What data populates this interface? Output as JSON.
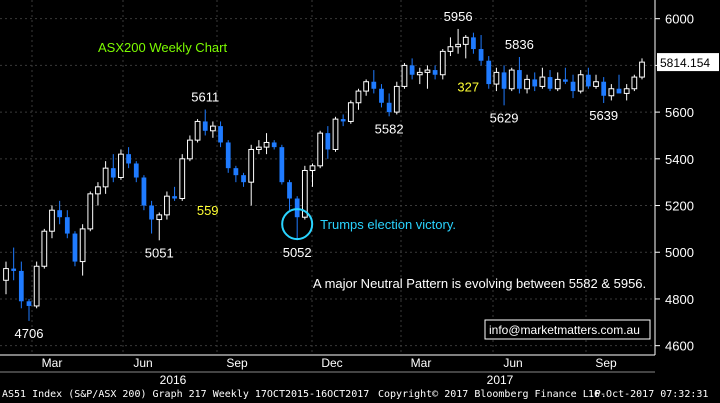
{
  "chart_data": {
    "type": "candlestick",
    "title": "ASX200 Weekly Chart",
    "ylim": [
      4560,
      6080
    ],
    "y_ticks": [
      4600,
      4800,
      5000,
      5200,
      5400,
      5600,
      5800,
      6000
    ],
    "x_month_labels": [
      "Mar",
      "Jun",
      "Sep",
      "Dec",
      "Mar",
      "Jun",
      "Sep"
    ],
    "x_year_labels": [
      "2016",
      "2017"
    ],
    "last_value": "5814.154",
    "colors": {
      "up": "#ffffff",
      "down": "#1f7bff",
      "title": "#7cfc00",
      "annotation_yellow": "#ffff33",
      "circle": "#2ad4ff"
    },
    "candles": [
      {
        "open": 4880,
        "high": 4960,
        "low": 4820,
        "close": 4930
      },
      {
        "open": 4930,
        "high": 5020,
        "low": 4880,
        "close": 4920
      },
      {
        "open": 4920,
        "high": 4960,
        "low": 4760,
        "close": 4790
      },
      {
        "open": 4790,
        "high": 4800,
        "low": 4706,
        "close": 4770
      },
      {
        "open": 4770,
        "high": 4960,
        "low": 4760,
        "close": 4940
      },
      {
        "open": 4940,
        "high": 5100,
        "low": 4930,
        "close": 5090
      },
      {
        "open": 5090,
        "high": 5200,
        "low": 5060,
        "close": 5180
      },
      {
        "open": 5180,
        "high": 5220,
        "low": 5120,
        "close": 5150
      },
      {
        "open": 5150,
        "high": 5180,
        "low": 5060,
        "close": 5080
      },
      {
        "open": 5080,
        "high": 5090,
        "low": 4940,
        "close": 4960
      },
      {
        "open": 4960,
        "high": 5120,
        "low": 4900,
        "close": 5100
      },
      {
        "open": 5100,
        "high": 5260,
        "low": 5090,
        "close": 5250
      },
      {
        "open": 5250,
        "high": 5300,
        "low": 5200,
        "close": 5280
      },
      {
        "open": 5280,
        "high": 5390,
        "low": 5250,
        "close": 5360
      },
      {
        "open": 5360,
        "high": 5420,
        "low": 5300,
        "close": 5320
      },
      {
        "open": 5320,
        "high": 5440,
        "low": 5310,
        "close": 5420
      },
      {
        "open": 5420,
        "high": 5450,
        "low": 5360,
        "close": 5380
      },
      {
        "open": 5380,
        "high": 5390,
        "low": 5300,
        "close": 5320
      },
      {
        "open": 5320,
        "high": 5330,
        "low": 5180,
        "close": 5200
      },
      {
        "open": 5200,
        "high": 5220,
        "low": 5080,
        "close": 5140
      },
      {
        "open": 5140,
        "high": 5170,
        "low": 5051,
        "close": 5160
      },
      {
        "open": 5160,
        "high": 5260,
        "low": 5140,
        "close": 5240
      },
      {
        "open": 5240,
        "high": 5280,
        "low": 5220,
        "close": 5230
      },
      {
        "open": 5230,
        "high": 5420,
        "low": 5220,
        "close": 5400
      },
      {
        "open": 5400,
        "high": 5500,
        "low": 5390,
        "close": 5480
      },
      {
        "open": 5480,
        "high": 5570,
        "low": 5470,
        "close": 5560
      },
      {
        "open": 5560,
        "high": 5611,
        "low": 5500,
        "close": 5520
      },
      {
        "open": 5520,
        "high": 5560,
        "low": 5490,
        "close": 5540
      },
      {
        "open": 5540,
        "high": 5560,
        "low": 5450,
        "close": 5470
      },
      {
        "open": 5470,
        "high": 5480,
        "low": 5340,
        "close": 5360
      },
      {
        "open": 5360,
        "high": 5370,
        "low": 5300,
        "close": 5330
      },
      {
        "open": 5330,
        "high": 5340,
        "low": 5280,
        "close": 5300
      },
      {
        "open": 5300,
        "high": 5460,
        "low": 5200,
        "close": 5440
      },
      {
        "open": 5440,
        "high": 5480,
        "low": 5420,
        "close": 5450
      },
      {
        "open": 5450,
        "high": 5510,
        "low": 5420,
        "close": 5470
      },
      {
        "open": 5470,
        "high": 5480,
        "low": 5440,
        "close": 5450
      },
      {
        "open": 5450,
        "high": 5460,
        "low": 5290,
        "close": 5300
      },
      {
        "open": 5300,
        "high": 5310,
        "low": 5180,
        "close": 5230
      },
      {
        "open": 5230,
        "high": 5240,
        "low": 5052,
        "close": 5150
      },
      {
        "open": 5150,
        "high": 5370,
        "low": 5140,
        "close": 5350
      },
      {
        "open": 5350,
        "high": 5380,
        "low": 5280,
        "close": 5370
      },
      {
        "open": 5370,
        "high": 5520,
        "low": 5360,
        "close": 5510
      },
      {
        "open": 5510,
        "high": 5540,
        "low": 5400,
        "close": 5440
      },
      {
        "open": 5440,
        "high": 5580,
        "low": 5430,
        "close": 5570
      },
      {
        "open": 5570,
        "high": 5590,
        "low": 5540,
        "close": 5560
      },
      {
        "open": 5560,
        "high": 5650,
        "low": 5550,
        "close": 5640
      },
      {
        "open": 5640,
        "high": 5700,
        "low": 5610,
        "close": 5690
      },
      {
        "open": 5690,
        "high": 5740,
        "low": 5670,
        "close": 5730
      },
      {
        "open": 5730,
        "high": 5780,
        "low": 5680,
        "close": 5700
      },
      {
        "open": 5700,
        "high": 5720,
        "low": 5620,
        "close": 5640
      },
      {
        "open": 5640,
        "high": 5680,
        "low": 5582,
        "close": 5600
      },
      {
        "open": 5600,
        "high": 5730,
        "low": 5590,
        "close": 5710
      },
      {
        "open": 5710,
        "high": 5810,
        "low": 5700,
        "close": 5800
      },
      {
        "open": 5800,
        "high": 5830,
        "low": 5740,
        "close": 5760
      },
      {
        "open": 5760,
        "high": 5790,
        "low": 5720,
        "close": 5770
      },
      {
        "open": 5770,
        "high": 5800,
        "low": 5700,
        "close": 5780
      },
      {
        "open": 5780,
        "high": 5800,
        "low": 5740,
        "close": 5760
      },
      {
        "open": 5760,
        "high": 5870,
        "low": 5740,
        "close": 5860
      },
      {
        "open": 5860,
        "high": 5920,
        "low": 5840,
        "close": 5880
      },
      {
        "open": 5880,
        "high": 5956,
        "low": 5850,
        "close": 5890
      },
      {
        "open": 5890,
        "high": 5930,
        "low": 5830,
        "close": 5920
      },
      {
        "open": 5920,
        "high": 5940,
        "low": 5850,
        "close": 5870
      },
      {
        "open": 5870,
        "high": 5930,
        "low": 5800,
        "close": 5820
      },
      {
        "open": 5820,
        "high": 5840,
        "low": 5700,
        "close": 5720
      },
      {
        "open": 5720,
        "high": 5790,
        "low": 5690,
        "close": 5770
      },
      {
        "open": 5770,
        "high": 5800,
        "low": 5629,
        "close": 5700
      },
      {
        "open": 5700,
        "high": 5790,
        "low": 5690,
        "close": 5780
      },
      {
        "open": 5780,
        "high": 5836,
        "low": 5680,
        "close": 5700
      },
      {
        "open": 5700,
        "high": 5760,
        "low": 5680,
        "close": 5740
      },
      {
        "open": 5740,
        "high": 5770,
        "low": 5690,
        "close": 5710
      },
      {
        "open": 5710,
        "high": 5790,
        "low": 5700,
        "close": 5750
      },
      {
        "open": 5750,
        "high": 5780,
        "low": 5690,
        "close": 5700
      },
      {
        "open": 5700,
        "high": 5770,
        "low": 5690,
        "close": 5740
      },
      {
        "open": 5740,
        "high": 5790,
        "low": 5720,
        "close": 5730
      },
      {
        "open": 5730,
        "high": 5760,
        "low": 5660,
        "close": 5690
      },
      {
        "open": 5690,
        "high": 5780,
        "low": 5680,
        "close": 5760
      },
      {
        "open": 5760,
        "high": 5790,
        "low": 5700,
        "close": 5710
      },
      {
        "open": 5710,
        "high": 5760,
        "low": 5700,
        "close": 5730
      },
      {
        "open": 5730,
        "high": 5750,
        "low": 5639,
        "close": 5670
      },
      {
        "open": 5670,
        "high": 5720,
        "low": 5650,
        "close": 5700
      },
      {
        "open": 5700,
        "high": 5760,
        "low": 5690,
        "close": 5680
      },
      {
        "open": 5680,
        "high": 5720,
        "low": 5650,
        "close": 5700
      },
      {
        "open": 5700,
        "high": 5760,
        "low": 5690,
        "close": 5750
      },
      {
        "open": 5750,
        "high": 5830,
        "low": 5740,
        "close": 5814
      }
    ],
    "annotations": [
      {
        "text": "4706",
        "candle": 3,
        "at": 4706,
        "pos": "below",
        "color": "white"
      },
      {
        "text": "5051",
        "candle": 20,
        "at": 5051,
        "pos": "below",
        "color": "white"
      },
      {
        "text": "5611",
        "candle": 26,
        "at": 5611,
        "pos": "above",
        "color": "white"
      },
      {
        "text": "559",
        "candle": 28,
        "at": 5180,
        "pos": "left",
        "color": "yellow"
      },
      {
        "text": "5052",
        "candle": 38,
        "at": 5052,
        "pos": "below",
        "color": "white"
      },
      {
        "text": "5582",
        "candle": 50,
        "at": 5582,
        "pos": "below",
        "color": "white"
      },
      {
        "text": "5956",
        "candle": 59,
        "at": 5956,
        "pos": "above",
        "color": "white"
      },
      {
        "text": "327",
        "candle": 62,
        "at": 5710,
        "pos": "left",
        "color": "yellow"
      },
      {
        "text": "5629",
        "candle": 65,
        "at": 5629,
        "pos": "below",
        "color": "white"
      },
      {
        "text": "5836",
        "candle": 67,
        "at": 5836,
        "pos": "above",
        "color": "white"
      },
      {
        "text": "5639",
        "candle": 78,
        "at": 5639,
        "pos": "below",
        "color": "white"
      }
    ],
    "circle_note": "Trumps election victory.",
    "circle_candle": 38,
    "circle_level": 5052,
    "pattern_note": "A major Neutral Pattern is evolving between 5582 & 5956.",
    "contact": "info@marketmatters.com.au"
  },
  "footer": {
    "left": "AS51 Index (S&P/ASX 200) Graph 217  Weekly 17OCT2015-16OCT2017",
    "middle": "Copyright© 2017 Bloomberg Finance L.P.",
    "right": "16-Oct-2017 07:32:31"
  }
}
